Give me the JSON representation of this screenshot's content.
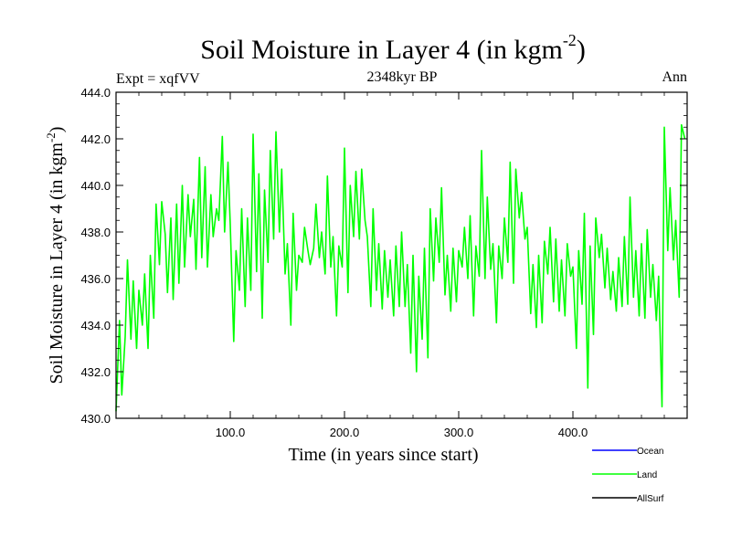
{
  "chart_data": {
    "type": "line",
    "title": "Soil Moisture in Layer 4 (in kgm",
    "title_sup": "-2",
    "title_end": ")",
    "subtitle": "2348kyr BP",
    "expt_label": "Expt = xqfVV",
    "season_label": "Ann",
    "xlabel": "Time (in years since start)",
    "ylabel": "Soil Moisture in Layer 4 (in kgm",
    "ylabel_sup": "-2",
    "ylabel_end": ")",
    "xlim": [
      0,
      500
    ],
    "ylim": [
      430,
      444
    ],
    "xticks": [
      100,
      200,
      300,
      400
    ],
    "xtick_labels": [
      "100.0",
      "200.0",
      "300.0",
      "400.0"
    ],
    "yticks": [
      430,
      432,
      434,
      436,
      438,
      440,
      442,
      444
    ],
    "ytick_labels": [
      "430.0",
      "432.0",
      "434.0",
      "436.0",
      "438.0",
      "440.0",
      "442.0",
      "444.0"
    ],
    "legend": [
      {
        "name": "Ocean",
        "color": "#0000ff"
      },
      {
        "name": "Land",
        "color": "#00ff00"
      },
      {
        "name": "AllSurf",
        "color": "#000000"
      }
    ],
    "series": [
      {
        "name": "Land",
        "color": "#00ff00",
        "x": [
          0,
          3,
          5,
          8,
          10,
          13,
          15,
          18,
          20,
          23,
          25,
          28,
          30,
          33,
          35,
          38,
          40,
          43,
          45,
          48,
          50,
          53,
          55,
          58,
          60,
          63,
          65,
          68,
          70,
          73,
          75,
          78,
          80,
          83,
          85,
          88,
          90,
          93,
          95,
          98,
          100,
          103,
          105,
          108,
          110,
          113,
          115,
          118,
          120,
          123,
          125,
          128,
          130,
          133,
          135,
          138,
          140,
          143,
          145,
          148,
          150,
          153,
          155,
          158,
          160,
          163,
          165,
          168,
          170,
          173,
          175,
          178,
          180,
          183,
          185,
          188,
          190,
          193,
          195,
          198,
          200,
          203,
          205,
          208,
          210,
          213,
          215,
          218,
          220,
          223,
          225,
          228,
          230,
          233,
          235,
          238,
          240,
          243,
          245,
          248,
          250,
          253,
          255,
          258,
          260,
          263,
          265,
          268,
          270,
          273,
          275,
          278,
          280,
          283,
          285,
          288,
          290,
          293,
          295,
          298,
          300,
          303,
          305,
          308,
          310,
          313,
          315,
          318,
          320,
          323,
          325,
          328,
          330,
          333,
          335,
          338,
          340,
          343,
          345,
          348,
          350,
          353,
          355,
          358,
          360,
          363,
          365,
          368,
          370,
          373,
          375,
          378,
          380,
          383,
          385,
          388,
          390,
          393,
          395,
          398,
          400,
          403,
          405,
          408,
          410,
          413,
          415,
          418,
          420,
          423,
          425,
          428,
          430,
          433,
          435,
          438,
          440,
          443,
          445,
          448,
          450,
          453,
          455,
          458,
          460,
          463,
          465,
          468,
          470,
          473,
          475,
          478,
          480,
          483,
          485,
          488,
          490,
          493,
          495,
          498
        ],
        "values": [
          430.3,
          434.2,
          431.0,
          433.5,
          436.8,
          433.4,
          435.9,
          433.0,
          435.5,
          434.0,
          436.2,
          433.0,
          437.0,
          434.3,
          439.2,
          436.6,
          439.3,
          437.9,
          435.4,
          438.6,
          435.1,
          439.2,
          435.8,
          440.0,
          436.5,
          439.6,
          437.8,
          439.4,
          436.4,
          441.2,
          436.9,
          440.8,
          436.5,
          439.6,
          437.8,
          439.0,
          438.5,
          442.1,
          438.0,
          441.0,
          438.3,
          433.3,
          437.2,
          435.5,
          439.0,
          434.8,
          438.6,
          435.5,
          442.2,
          436.3,
          440.5,
          434.3,
          439.8,
          436.7,
          441.5,
          437.7,
          442.3,
          438.0,
          440.7,
          436.2,
          437.5,
          434.0,
          438.8,
          435.5,
          437.0,
          436.7,
          438.2,
          437.2,
          436.6,
          437.3,
          439.2,
          436.9,
          438.0,
          436.2,
          440.4,
          436.5,
          437.8,
          434.4,
          437.4,
          436.5,
          441.6,
          435.4,
          440.0,
          437.8,
          440.6,
          437.7,
          440.7,
          438.5,
          437.8,
          434.8,
          439.0,
          435.5,
          437.5,
          434.7,
          437.2,
          435.2,
          436.8,
          434.4,
          437.4,
          434.8,
          438.0,
          434.8,
          436.6,
          432.8,
          437.0,
          432.0,
          436.1,
          433.4,
          437.3,
          432.6,
          439.0,
          435.9,
          438.6,
          436.7,
          439.9,
          435.3,
          437.0,
          434.6,
          437.3,
          435.0,
          437.2,
          436.5,
          438.2,
          436.0,
          438.7,
          434.4,
          437.4,
          436.1,
          441.5,
          436.0,
          439.5,
          436.4,
          437.5,
          434.1,
          437.4,
          436.0,
          438.6,
          436.7,
          441.0,
          435.8,
          440.7,
          438.6,
          439.7,
          437.7,
          438.2,
          434.5,
          436.6,
          433.9,
          437.0,
          434.1,
          437.6,
          436.2,
          438.2,
          435.0,
          437.7,
          434.6,
          436.8,
          434.4,
          437.5,
          436.1,
          436.5,
          433.0,
          437.2,
          434.9,
          438.8,
          431.3,
          437.4,
          433.6,
          438.6,
          436.9,
          437.9,
          435.6,
          437.3,
          435.1,
          436.3,
          434.6,
          436.9,
          434.8,
          437.8,
          434.9,
          439.5,
          435.2,
          437.2,
          434.4,
          437.5,
          434.3,
          438.1,
          435.2,
          436.6,
          434.2,
          436.1,
          430.5,
          442.5,
          437.2,
          439.9,
          436.8,
          438.5,
          435.2,
          442.6,
          442.0
        ]
      }
    ]
  }
}
